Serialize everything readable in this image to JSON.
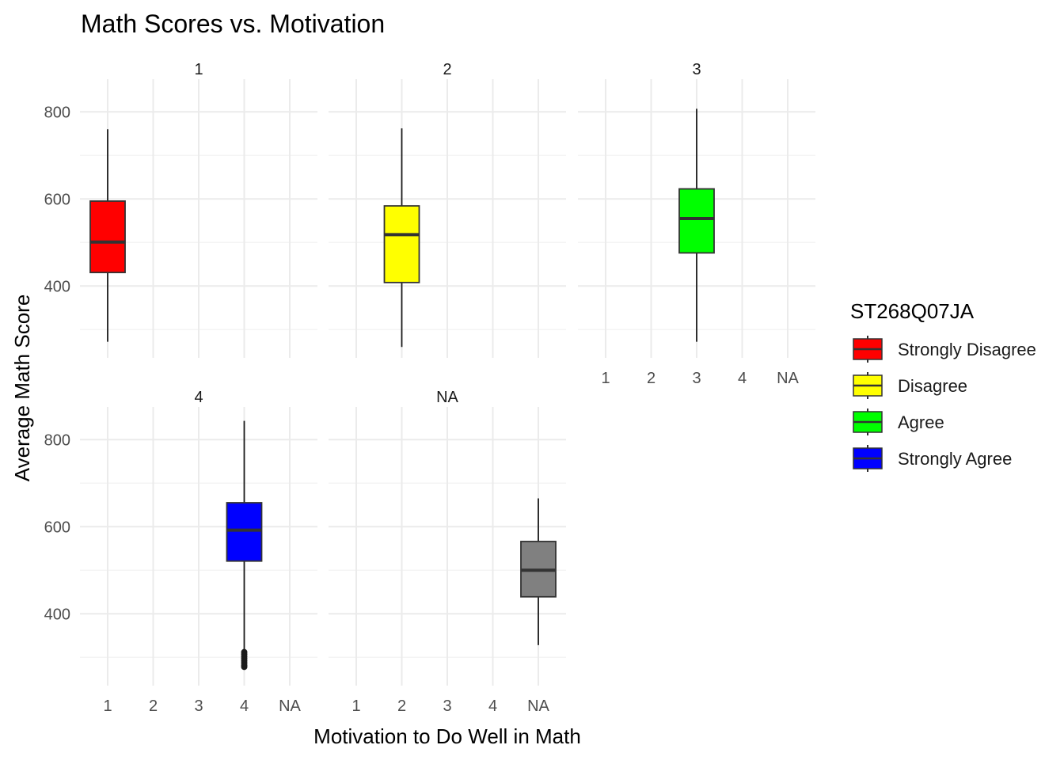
{
  "chart_data": {
    "type": "boxplot",
    "title": "Math Scores vs. Motivation",
    "xlabel": "Motivation to Do Well in Math",
    "ylabel": "Average Math Score",
    "facet_var": "ST268Q07JA",
    "x_categories": [
      "1",
      "2",
      "3",
      "4",
      "NA"
    ],
    "ylim": [
      235,
      875
    ],
    "y_ticks": [
      400,
      600,
      800
    ],
    "grid": true,
    "legend": {
      "title": "ST268Q07JA",
      "position": "right",
      "entries": [
        {
          "label": "Strongly Disagree",
          "color": "#ff0000"
        },
        {
          "label": "Disagree",
          "color": "#ffff00"
        },
        {
          "label": "Agree",
          "color": "#00ff00"
        },
        {
          "label": "Strongly Agree",
          "color": "#0000ff"
        }
      ]
    },
    "facets": [
      {
        "label": "1",
        "boxes": [
          {
            "x": "1",
            "color": "#ff0000",
            "min": 272,
            "q1": 431,
            "median": 501,
            "q3": 595,
            "max": 760,
            "outliers": []
          }
        ]
      },
      {
        "label": "2",
        "boxes": [
          {
            "x": "2",
            "color": "#ffff00",
            "min": 260,
            "q1": 408,
            "median": 518,
            "q3": 584,
            "max": 762,
            "outliers": []
          }
        ]
      },
      {
        "label": "3",
        "boxes": [
          {
            "x": "3",
            "color": "#00ff00",
            "min": 272,
            "q1": 476,
            "median": 555,
            "q3": 623,
            "max": 807,
            "outliers": []
          }
        ]
      },
      {
        "label": "4",
        "boxes": [
          {
            "x": "4",
            "color": "#0000ff",
            "min": 318,
            "q1": 521,
            "median": 592,
            "q3": 655,
            "max": 843,
            "outliers": [
              312,
              307,
              302,
              297,
              292,
              287,
              282,
              278
            ]
          }
        ]
      },
      {
        "label": "NA",
        "boxes": [
          {
            "x": "NA",
            "color": "#808080",
            "min": 328,
            "q1": 439,
            "median": 500,
            "q3": 566,
            "max": 665,
            "outliers": []
          }
        ]
      }
    ]
  }
}
